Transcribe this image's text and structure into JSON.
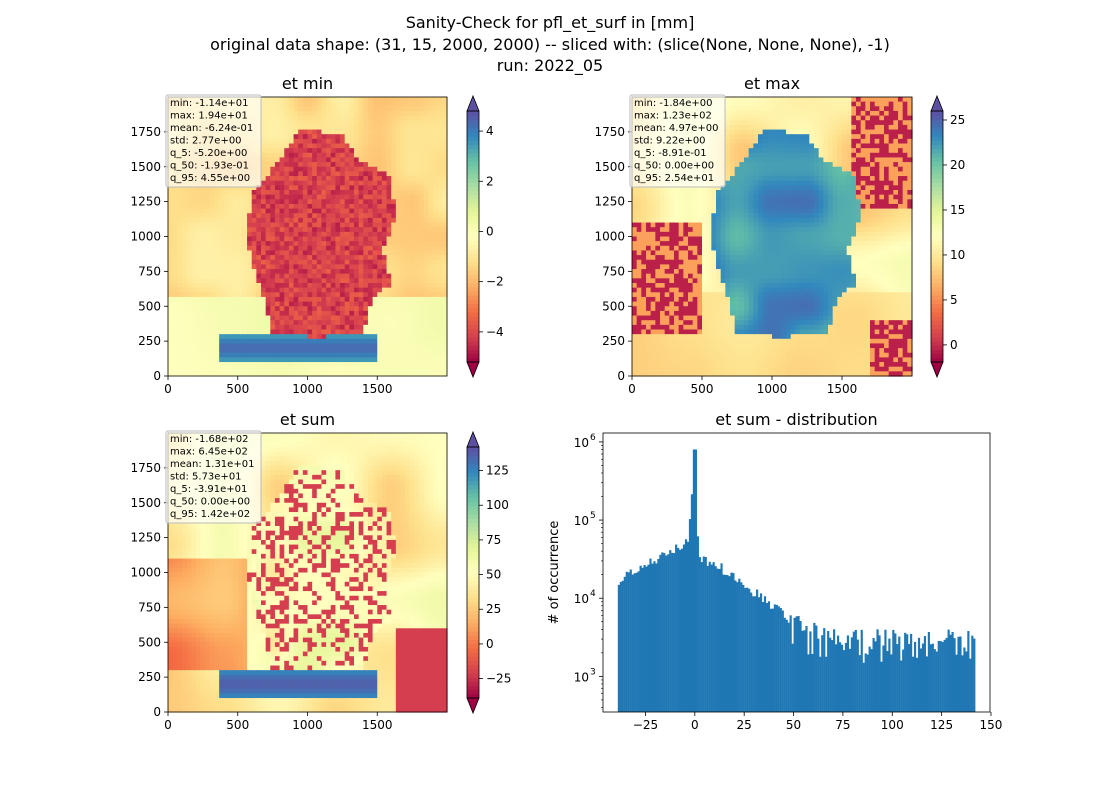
{
  "suptitle": {
    "line1": "Sanity-Check for pfl_et_surf in [mm]",
    "line2": "original data shape: (31, 15, 2000, 2000) -- sliced with: (slice(None, None, None), -1)",
    "line3": "run: 2022_05"
  },
  "colors": {
    "hist_bar": "#1f77b4",
    "spectral": [
      "#9e0142",
      "#d53e4f",
      "#f46d43",
      "#fdae61",
      "#fee08b",
      "#ffffbf",
      "#e6f598",
      "#abdda4",
      "#66c2a5",
      "#3288bd",
      "#5e4fa2"
    ]
  },
  "chart_data": [
    {
      "type": "heatmap",
      "title": "et min",
      "x_ticks": [
        "0",
        "500",
        "1000",
        "1500"
      ],
      "y_ticks": [
        "0",
        "250",
        "500",
        "750",
        "1000",
        "1250",
        "1500",
        "1750"
      ],
      "xlim": [
        0,
        2000
      ],
      "ylim": [
        0,
        2000
      ],
      "colorbar": {
        "range": [
          -5.2,
          4.8
        ],
        "ticks": [
          "−4",
          "−2",
          "0",
          "2",
          "4"
        ],
        "tick_values": [
          -4,
          -2,
          0,
          2,
          4
        ],
        "extend": "both",
        "cmap": "Spectral"
      },
      "stats": [
        "min: -1.14e+01",
        "max: 1.94e+01",
        "mean: -6.24e-01",
        "std: 2.77e+00",
        "q_5: -5.20e+00",
        "q_50: -1.93e-01",
        "q_95: 4.55e+00"
      ]
    },
    {
      "type": "heatmap",
      "title": "et max",
      "x_ticks": [
        "0",
        "500",
        "1000",
        "1500"
      ],
      "y_ticks": [
        "0",
        "250",
        "500",
        "750",
        "1000",
        "1250",
        "1500",
        "1750"
      ],
      "xlim": [
        0,
        2000
      ],
      "ylim": [
        0,
        2000
      ],
      "colorbar": {
        "range": [
          -1.9,
          26
        ],
        "ticks": [
          "0",
          "5",
          "10",
          "15",
          "20",
          "25"
        ],
        "tick_values": [
          0,
          5,
          10,
          15,
          20,
          25
        ],
        "extend": "both",
        "cmap": "Spectral"
      },
      "stats": [
        "min: -1.84e+00",
        "max: 1.23e+02",
        "mean: 4.97e+00",
        "std: 9.22e+00",
        "q_5: -8.91e-01",
        "q_50: 0.00e+00",
        "q_95: 2.54e+01"
      ]
    },
    {
      "type": "heatmap",
      "title": "et sum",
      "x_ticks": [
        "0",
        "500",
        "1000",
        "1500"
      ],
      "y_ticks": [
        "0",
        "250",
        "500",
        "750",
        "1000",
        "1250",
        "1500",
        "1750"
      ],
      "xlim": [
        0,
        2000
      ],
      "ylim": [
        0,
        2000
      ],
      "colorbar": {
        "range": [
          -39,
          142
        ],
        "ticks": [
          "−25",
          "0",
          "25",
          "50",
          "75",
          "100",
          "125"
        ],
        "tick_values": [
          -25,
          0,
          25,
          50,
          75,
          100,
          125
        ],
        "extend": "both",
        "cmap": "Spectral"
      },
      "stats": [
        "min: -1.68e+02",
        "max: 6.45e+02",
        "mean: 1.31e+01",
        "std: 5.73e+01",
        "q_5: -3.91e+01",
        "q_50: 0.00e+00",
        "q_95: 1.42e+02"
      ]
    },
    {
      "type": "bar",
      "title": "et sum - distribution",
      "xlabel": "",
      "ylabel": "# of occurrence",
      "y_scale": "log",
      "xlim": [
        -46.5,
        149.5
      ],
      "ylim": [
        350,
        1300000
      ],
      "x_ticks": [
        "−25",
        "0",
        "25",
        "50",
        "75",
        "100",
        "125",
        "150"
      ],
      "x_tick_values": [
        -25,
        0,
        25,
        50,
        75,
        100,
        125,
        150
      ],
      "y_ticks": [
        "10",
        "10",
        "10",
        "10"
      ],
      "y_tick_exponents": [
        "3",
        "4",
        "5",
        "6"
      ],
      "y_tick_values": [
        1000,
        10000,
        100000,
        1000000
      ],
      "bin_range": [
        -39,
        142
      ],
      "profile": [
        [
          -39,
          16000
        ],
        [
          -30,
          24000
        ],
        [
          -20,
          30000
        ],
        [
          -10,
          42000
        ],
        [
          -3,
          60000
        ],
        [
          0,
          800000
        ],
        [
          2,
          32000
        ],
        [
          10,
          28000
        ],
        [
          20,
          19000
        ],
        [
          30,
          12000
        ],
        [
          40,
          8000
        ],
        [
          50,
          5000
        ],
        [
          60,
          3600
        ],
        [
          80,
          3200
        ],
        [
          100,
          3100
        ],
        [
          120,
          3000
        ],
        [
          142,
          2900
        ]
      ]
    }
  ]
}
